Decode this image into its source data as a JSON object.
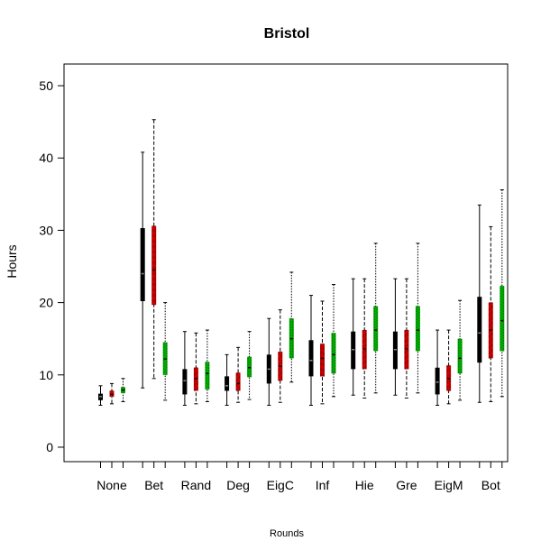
{
  "chart_data": {
    "type": "box",
    "title": "Bristol",
    "xlabel": "Rounds",
    "ylabel": "Hours",
    "ylim": [
      -2,
      53
    ],
    "yticks": [
      0,
      10,
      20,
      30,
      40,
      50
    ],
    "categories": [
      "None",
      "Bet",
      "Rand",
      "Deg",
      "EigC",
      "Inf",
      "Hie",
      "Gre",
      "EigM",
      "Bot"
    ],
    "series_colors": [
      "#000000",
      "#cc0000",
      "#00aa00"
    ],
    "series_styles": [
      "solid",
      "dashed",
      "dotted"
    ],
    "boxes": [
      [
        {
          "min": 5.8,
          "q1": 6.5,
          "median": 7.0,
          "q3": 7.4,
          "max": 8.5
        },
        {
          "min": 6.0,
          "q1": 7.0,
          "median": 7.3,
          "q3": 7.8,
          "max": 8.8
        },
        {
          "min": 6.3,
          "q1": 7.5,
          "median": 7.9,
          "q3": 8.3,
          "max": 9.5
        }
      ],
      [
        {
          "min": 8.2,
          "q1": 20.2,
          "median": 24.0,
          "q3": 30.3,
          "max": 40.8
        },
        {
          "min": 9.5,
          "q1": 19.7,
          "median": 24.5,
          "q3": 30.6,
          "max": 45.3
        },
        {
          "min": 6.5,
          "q1": 10.0,
          "median": 12.2,
          "q3": 14.5,
          "max": 20.0
        }
      ],
      [
        {
          "min": 5.8,
          "q1": 7.3,
          "median": 9.2,
          "q3": 10.8,
          "max": 16.0
        },
        {
          "min": 6.0,
          "q1": 7.8,
          "median": 9.5,
          "q3": 11.0,
          "max": 15.8
        },
        {
          "min": 6.3,
          "q1": 8.0,
          "median": 10.2,
          "q3": 11.8,
          "max": 16.2
        }
      ],
      [
        {
          "min": 5.8,
          "q1": 7.8,
          "median": 8.5,
          "q3": 9.8,
          "max": 12.8
        },
        {
          "min": 6.2,
          "q1": 7.8,
          "median": 8.8,
          "q3": 10.3,
          "max": 13.8
        },
        {
          "min": 6.6,
          "q1": 9.7,
          "median": 11.0,
          "q3": 12.5,
          "max": 16.0
        }
      ],
      [
        {
          "min": 5.8,
          "q1": 8.8,
          "median": 10.8,
          "q3": 12.8,
          "max": 17.8
        },
        {
          "min": 6.2,
          "q1": 9.2,
          "median": 11.2,
          "q3": 13.2,
          "max": 19.0
        },
        {
          "min": 9.0,
          "q1": 12.3,
          "median": 15.0,
          "q3": 17.8,
          "max": 24.2
        }
      ],
      [
        {
          "min": 5.8,
          "q1": 9.8,
          "median": 12.0,
          "q3": 14.8,
          "max": 21.0
        },
        {
          "min": 6.0,
          "q1": 9.8,
          "median": 12.3,
          "q3": 14.3,
          "max": 20.2
        },
        {
          "min": 7.0,
          "q1": 10.2,
          "median": 12.8,
          "q3": 15.8,
          "max": 22.5
        }
      ],
      [
        {
          "min": 7.2,
          "q1": 10.8,
          "median": 13.5,
          "q3": 16.0,
          "max": 23.3
        },
        {
          "min": 6.8,
          "q1": 10.8,
          "median": 13.6,
          "q3": 16.2,
          "max": 23.3
        },
        {
          "min": 7.5,
          "q1": 13.3,
          "median": 16.2,
          "q3": 19.5,
          "max": 28.2
        }
      ],
      [
        {
          "min": 7.2,
          "q1": 10.8,
          "median": 13.5,
          "q3": 16.0,
          "max": 23.3
        },
        {
          "min": 6.8,
          "q1": 10.8,
          "median": 13.6,
          "q3": 16.2,
          "max": 23.3
        },
        {
          "min": 7.5,
          "q1": 13.3,
          "median": 16.2,
          "q3": 19.5,
          "max": 28.2
        }
      ],
      [
        {
          "min": 5.8,
          "q1": 7.3,
          "median": 9.0,
          "q3": 11.0,
          "max": 16.2
        },
        {
          "min": 6.0,
          "q1": 7.8,
          "median": 9.5,
          "q3": 11.3,
          "max": 16.2
        },
        {
          "min": 6.5,
          "q1": 10.2,
          "median": 12.3,
          "q3": 15.0,
          "max": 20.3
        }
      ],
      [
        {
          "min": 6.2,
          "q1": 11.7,
          "median": 15.8,
          "q3": 20.8,
          "max": 33.5
        },
        {
          "min": 6.3,
          "q1": 12.3,
          "median": 16.2,
          "q3": 20.0,
          "max": 30.5
        },
        {
          "min": 7.0,
          "q1": 13.3,
          "median": 17.5,
          "q3": 22.3,
          "max": 35.6
        }
      ]
    ]
  }
}
